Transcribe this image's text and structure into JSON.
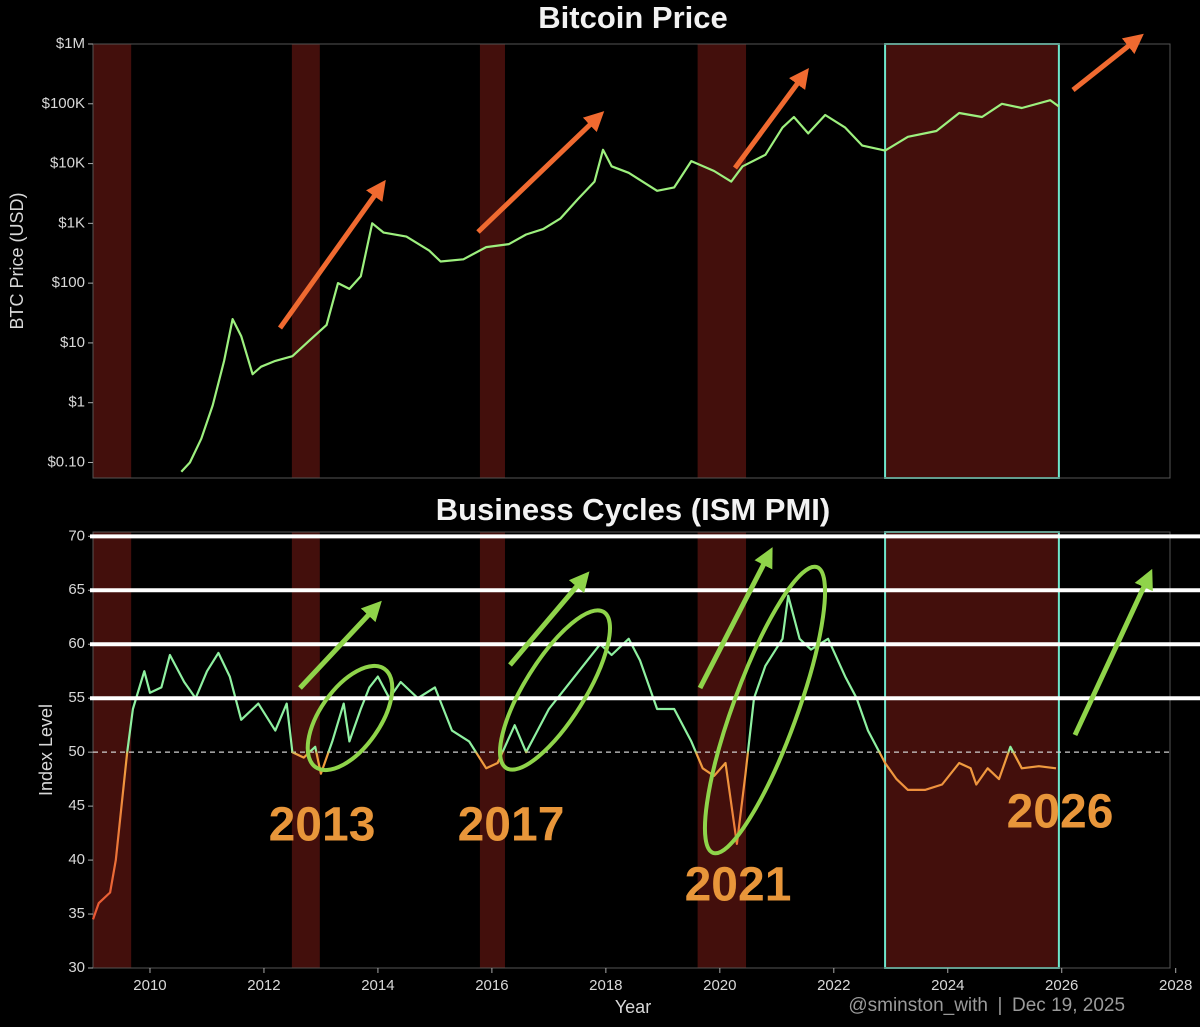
{
  "chart_data": [
    {
      "type": "line",
      "title": "Bitcoin Price",
      "y_label": "BTC Price (USD)",
      "log_scale": true,
      "color": "#9df07e",
      "xlim": [
        2009,
        2027.9
      ],
      "ylim": [
        0.055,
        1000000
      ],
      "yticks": [
        {
          "value": 1000000,
          "label": "$1M"
        },
        {
          "value": 100000,
          "label": "$100K"
        },
        {
          "value": 10000,
          "label": "$10K"
        },
        {
          "value": 1000,
          "label": "$1K"
        },
        {
          "value": 100,
          "label": "$100"
        },
        {
          "value": 10,
          "label": "$10"
        },
        {
          "value": 1,
          "label": "$1"
        },
        {
          "value": 0.1,
          "label": "$0.10"
        }
      ],
      "shaded_periods": [
        {
          "start": 2009,
          "end": 2009.67
        },
        {
          "start": 2012.49,
          "end": 2012.98
        },
        {
          "start": 2015.79,
          "end": 2016.23
        },
        {
          "start": 2019.61,
          "end": 2020.46
        },
        {
          "start": 2022.9,
          "end": 2025.95,
          "outline": "#6ee6cc"
        }
      ],
      "shade_color": "#5a1410",
      "x": [
        2010.55,
        2010.7,
        2010.9,
        2011.1,
        2011.3,
        2011.45,
        2011.6,
        2011.8,
        2011.95,
        2012.2,
        2012.5,
        2012.8,
        2013.1,
        2013.3,
        2013.5,
        2013.7,
        2013.9,
        2014.1,
        2014.5,
        2014.9,
        2015.1,
        2015.5,
        2015.9,
        2016.3,
        2016.6,
        2016.9,
        2017.2,
        2017.5,
        2017.8,
        2017.95,
        2018.1,
        2018.4,
        2018.9,
        2019.2,
        2019.5,
        2019.9,
        2020.2,
        2020.4,
        2020.8,
        2021.1,
        2021.3,
        2021.55,
        2021.85,
        2022.2,
        2022.5,
        2022.9,
        2023.3,
        2023.8,
        2024.2,
        2024.6,
        2024.95,
        2025.3,
        2025.8,
        2025.95
      ],
      "values": [
        0.07,
        0.1,
        0.25,
        0.9,
        5,
        25,
        13,
        3,
        4,
        5,
        6,
        11,
        20,
        100,
        80,
        130,
        1000,
        700,
        600,
        350,
        230,
        250,
        400,
        450,
        650,
        800,
        1200,
        2500,
        5000,
        17000,
        9000,
        7000,
        3500,
        4000,
        11000,
        7500,
        5000,
        9000,
        14000,
        40000,
        60000,
        32000,
        65000,
        40000,
        20000,
        16500,
        28000,
        35000,
        70000,
        60000,
        100000,
        85000,
        115000,
        90000
      ]
    },
    {
      "type": "line",
      "title": "Business Cycles (ISM PMI)",
      "y_label": "Index Level",
      "x_label": "Year",
      "color": "#8ef0a0",
      "below_color": "#f0a040",
      "low_color": "#e84030",
      "xlim": [
        2009,
        2027.9
      ],
      "ylim": [
        30,
        70.4
      ],
      "xticks": [
        2010,
        2012,
        2014,
        2016,
        2018,
        2020,
        2022,
        2024,
        2026,
        2028
      ],
      "yticks": [
        30,
        35,
        40,
        45,
        50,
        55,
        60,
        65,
        70
      ],
      "threshold": 50,
      "reference_lines": [
        55,
        60,
        65,
        70
      ],
      "annotations": [
        "2013",
        "2017",
        "2021",
        "2026"
      ],
      "credit": "@sminston_with",
      "date": "Dec 19, 2025",
      "x": [
        2009.0,
        2009.1,
        2009.3,
        2009.4,
        2009.5,
        2009.6,
        2009.7,
        2009.9,
        2010.0,
        2010.2,
        2010.35,
        2010.6,
        2010.8,
        2011.0,
        2011.2,
        2011.4,
        2011.6,
        2011.9,
        2012.2,
        2012.4,
        2012.5,
        2012.7,
        2012.9,
        2013.0,
        2013.2,
        2013.4,
        2013.5,
        2013.7,
        2013.85,
        2014.0,
        2014.2,
        2014.4,
        2014.7,
        2015.0,
        2015.3,
        2015.6,
        2015.9,
        2016.1,
        2016.4,
        2016.6,
        2016.8,
        2017.0,
        2017.3,
        2017.6,
        2017.9,
        2018.1,
        2018.4,
        2018.6,
        2018.9,
        2019.2,
        2019.5,
        2019.7,
        2019.9,
        2020.1,
        2020.3,
        2020.45,
        2020.6,
        2020.8,
        2021.1,
        2021.2,
        2021.4,
        2021.6,
        2021.9,
        2022.2,
        2022.4,
        2022.6,
        2022.9,
        2023.1,
        2023.3,
        2023.6,
        2023.9,
        2024.2,
        2024.4,
        2024.5,
        2024.7,
        2024.9,
        2025.1,
        2025.3,
        2025.6,
        2025.9
      ],
      "values": [
        34.5,
        36,
        37,
        40,
        45,
        50,
        54,
        57.5,
        55.5,
        56,
        59,
        56.5,
        55,
        57.5,
        59.2,
        57,
        53,
        54.5,
        52,
        54.5,
        50,
        49.5,
        50.5,
        48,
        51,
        54.5,
        51,
        54,
        56,
        57,
        55,
        56.5,
        55,
        56,
        52,
        51,
        48.5,
        49,
        52.5,
        50,
        52,
        54,
        56,
        58,
        60,
        59,
        60.5,
        58.5,
        54,
        54,
        51,
        48.5,
        47.8,
        49,
        41.5,
        48,
        55,
        58,
        60.5,
        64.5,
        60.5,
        59.5,
        60.5,
        57,
        55,
        52,
        49,
        47.5,
        46.5,
        46.5,
        47,
        49,
        48.5,
        47,
        48.5,
        47.5,
        50.5,
        48.5,
        48.7,
        48.5
      ]
    }
  ]
}
